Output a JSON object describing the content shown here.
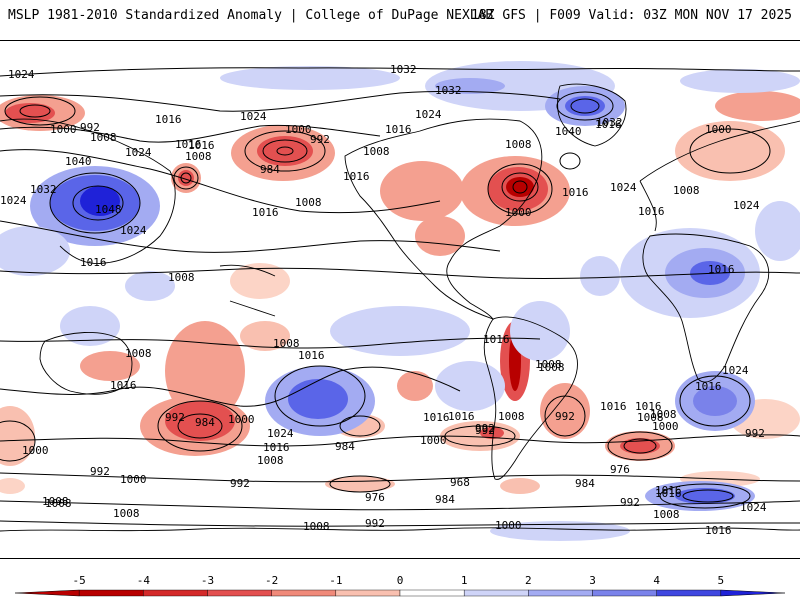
{
  "header": {
    "title": "MSLP 1981-2010 Standardized Anomaly | College of DuPage NEXLAB",
    "run_info": "18Z GFS | F009 Valid: 03Z MON NOV 17 2025"
  },
  "colors": {
    "strong_neg": "#a00000",
    "mid_neg": "#e35050",
    "light_neg": "#f4a090",
    "faint_neg": "#fcd4c6",
    "faint_pos": "#cfd4f8",
    "light_pos": "#a3abf2",
    "mid_pos": "#5a65e8",
    "strong_pos": "#1f22d8",
    "coast": "#000000",
    "land_bg": "#ffffff"
  },
  "contour_labels": [
    {
      "text": "1024",
      "id": "l1"
    },
    {
      "text": "1032",
      "id": "l2"
    },
    {
      "text": "1032",
      "id": "l3"
    },
    {
      "text": "1024",
      "id": "l4"
    },
    {
      "text": "1000",
      "id": "l5"
    },
    {
      "text": "992",
      "id": "l6"
    },
    {
      "text": "1008",
      "id": "l7"
    },
    {
      "text": "1016",
      "id": "l8"
    },
    {
      "text": "1000",
      "id": "l9"
    },
    {
      "text": "992",
      "id": "l10"
    },
    {
      "text": "1016",
      "id": "l11"
    },
    {
      "text": "1016",
      "id": "l12"
    },
    {
      "text": "1024",
      "id": "l13"
    },
    {
      "text": "1040",
      "id": "l14"
    },
    {
      "text": "1032",
      "id": "l15"
    },
    {
      "text": "1024",
      "id": "l16"
    },
    {
      "text": "1024",
      "id": "l17"
    },
    {
      "text": "1008",
      "id": "l18"
    },
    {
      "text": "1008",
      "id": "l19"
    },
    {
      "text": "1016",
      "id": "l20"
    },
    {
      "text": "984",
      "id": "l21"
    },
    {
      "text": "1008",
      "id": "l22"
    },
    {
      "text": "1016",
      "id": "l23"
    },
    {
      "text": "1048",
      "id": "l24"
    },
    {
      "text": "1024",
      "id": "l25"
    },
    {
      "text": "1016",
      "id": "l26"
    },
    {
      "text": "1016",
      "id": "l27"
    },
    {
      "text": "1008",
      "id": "l28"
    },
    {
      "text": "1016",
      "id": "l29"
    },
    {
      "text": "1016",
      "id": "l30"
    },
    {
      "text": "1008",
      "id": "l31"
    },
    {
      "text": "1000",
      "id": "l32"
    },
    {
      "text": "1016",
      "id": "l33"
    },
    {
      "text": "1040",
      "id": "l34"
    },
    {
      "text": "1032",
      "id": "l35"
    },
    {
      "text": "1000",
      "id": "l36"
    },
    {
      "text": "1008",
      "id": "l37"
    },
    {
      "text": "1024",
      "id": "l38"
    },
    {
      "text": "1016",
      "id": "l39"
    },
    {
      "text": "1008",
      "id": "l40"
    },
    {
      "text": "1024",
      "id": "l41"
    },
    {
      "text": "1016",
      "id": "l42"
    },
    {
      "text": "1008",
      "id": "l43"
    },
    {
      "text": "1008",
      "id": "l44"
    },
    {
      "text": "1016",
      "id": "l45"
    },
    {
      "text": "1016",
      "id": "l46"
    },
    {
      "text": "1008",
      "id": "l47"
    },
    {
      "text": "1016",
      "id": "l48"
    },
    {
      "text": "1016",
      "id": "l49"
    },
    {
      "text": "1008",
      "id": "l50"
    },
    {
      "text": "992",
      "id": "l51"
    },
    {
      "text": "984",
      "id": "l52"
    },
    {
      "text": "1000",
      "id": "l53"
    },
    {
      "text": "1024",
      "id": "l54"
    },
    {
      "text": "1016",
      "id": "l55"
    },
    {
      "text": "1008",
      "id": "l56"
    },
    {
      "text": "1000",
      "id": "l57"
    },
    {
      "text": "992",
      "id": "l58"
    },
    {
      "text": "1000",
      "id": "l59"
    },
    {
      "text": "992",
      "id": "l60"
    },
    {
      "text": "1008",
      "id": "l61"
    },
    {
      "text": "1008",
      "id": "l62"
    },
    {
      "text": "984",
      "id": "l63"
    },
    {
      "text": "976",
      "id": "l64"
    },
    {
      "text": "1000",
      "id": "l65"
    },
    {
      "text": "992",
      "id": "l66"
    },
    {
      "text": "1016",
      "id": "l67"
    },
    {
      "text": "1008",
      "id": "l68"
    },
    {
      "text": "992",
      "id": "l69"
    },
    {
      "text": "1000",
      "id": "l70"
    },
    {
      "text": "968",
      "id": "l71"
    },
    {
      "text": "984",
      "id": "l72"
    },
    {
      "text": "1000",
      "id": "l73"
    },
    {
      "text": "992",
      "id": "l74"
    },
    {
      "text": "1008",
      "id": "l75"
    },
    {
      "text": "1016",
      "id": "l76"
    },
    {
      "text": "1008",
      "id": "l77"
    },
    {
      "text": "1016",
      "id": "l78"
    },
    {
      "text": "992",
      "id": "l79"
    },
    {
      "text": "984",
      "id": "l80"
    },
    {
      "text": "976",
      "id": "l81"
    },
    {
      "text": "992",
      "id": "l82"
    },
    {
      "text": "1024",
      "id": "l83"
    },
    {
      "text": "1016",
      "id": "l84"
    },
    {
      "text": "1008",
      "id": "l85"
    },
    {
      "text": "1016",
      "id": "l86"
    },
    {
      "text": "1024",
      "id": "l87"
    },
    {
      "text": "1016",
      "id": "l88"
    },
    {
      "text": "992",
      "id": "l89"
    },
    {
      "text": "1008",
      "id": "l90"
    }
  ],
  "colorbar": {
    "ticks": [
      "-5",
      "-4",
      "-3",
      "-2",
      "-1",
      "0",
      "1",
      "2",
      "3",
      "4",
      "5"
    ],
    "bins": [
      {
        "v": -4.5,
        "color": "#b80000"
      },
      {
        "v": -3.5,
        "color": "#d42a2a"
      },
      {
        "v": -2.5,
        "color": "#e35050"
      },
      {
        "v": -1.5,
        "color": "#f08a7a"
      },
      {
        "v": -0.5,
        "color": "#f9c0b0"
      },
      {
        "v": 0.5,
        "color": "#ffffff"
      },
      {
        "v": 1.5,
        "color": "#cfd4f8"
      },
      {
        "v": 2.5,
        "color": "#a3abf2"
      },
      {
        "v": 3.5,
        "color": "#7a82ea"
      },
      {
        "v": 4.5,
        "color": "#3f47e0"
      },
      {
        "v": 5.5,
        "color": "#1f22d8"
      }
    ]
  }
}
